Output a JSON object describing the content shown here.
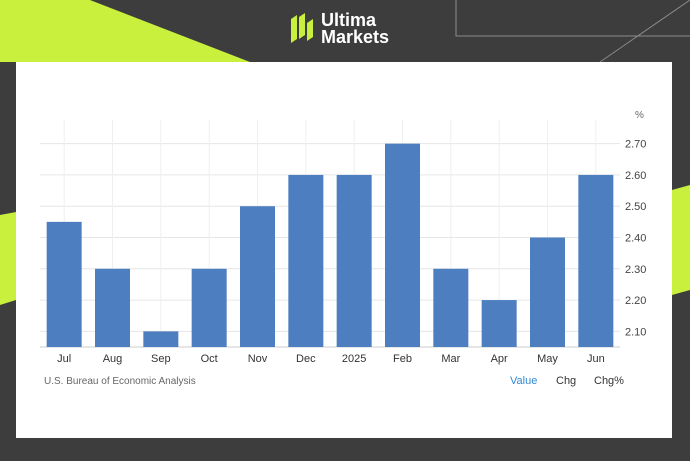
{
  "brand": {
    "line1": "Ultima",
    "line2": "Markets",
    "accent": "#c8f03c"
  },
  "chart_data": {
    "type": "bar",
    "categories": [
      "Jul",
      "Aug",
      "Sep",
      "Oct",
      "Nov",
      "Dec",
      "2025",
      "Feb",
      "Mar",
      "Apr",
      "May",
      "Jun"
    ],
    "values": [
      2.45,
      2.3,
      2.1,
      2.3,
      2.5,
      2.6,
      2.6,
      2.7,
      2.3,
      2.2,
      2.4,
      2.6
    ],
    "unit": "%",
    "yticks": [
      "2.70",
      "2.60",
      "2.50",
      "2.40",
      "2.30",
      "2.20",
      "2.10"
    ],
    "ylim": [
      2.05,
      2.75
    ],
    "bar_color": "#4d7ebf",
    "grid": true,
    "source": "U.S. Bureau of Economic Analysis"
  },
  "toggles": [
    {
      "label": "Value",
      "active": true
    },
    {
      "label": "Chg",
      "active": false
    },
    {
      "label": "Chg%",
      "active": false
    }
  ]
}
